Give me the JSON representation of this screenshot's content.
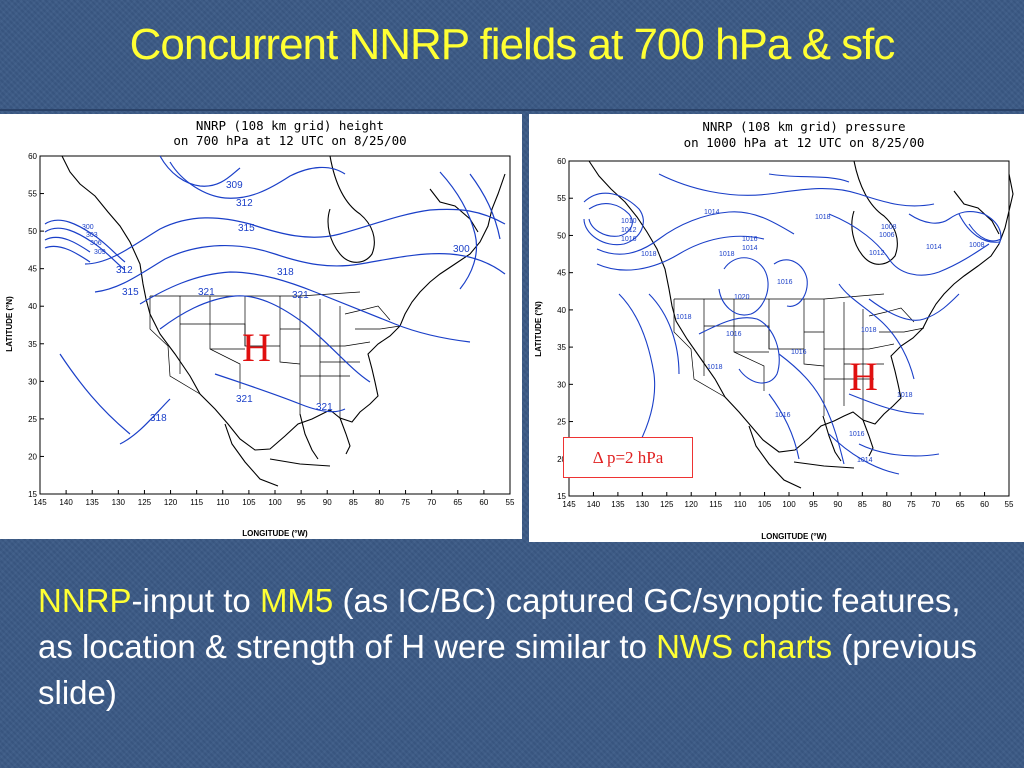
{
  "slide": {
    "title": "Concurrent NNRP fields at 700 hPa & sfc",
    "body": {
      "p1": "NNRP",
      "p2": "-input to ",
      "p3": "MM5",
      "p4": " (as IC/BC) captured GC/synoptic features, as location & strength of H were similar to ",
      "p5": "NWS charts",
      "p6": " (previous slide)"
    }
  },
  "colors": {
    "title": "#ffff33",
    "contour": "#1a3fc8",
    "high_marker": "#e01010",
    "background": "#3b5a86"
  },
  "left_map": {
    "title_line1": "NNRP (108 km grid) height",
    "title_line2": "on 700 hPa at 12 UTC on 8/25/00",
    "xlabel": "LONGITUDE (°W)",
    "ylabel": "LATITUDE (°N)",
    "xticks": [
      "145",
      "140",
      "135",
      "130",
      "125",
      "120",
      "115",
      "110",
      "105",
      "100",
      "95",
      "90",
      "85",
      "80",
      "75",
      "70",
      "65",
      "60",
      "55"
    ],
    "yticks": [
      "60",
      "55",
      "50",
      "45",
      "40",
      "35",
      "30",
      "25",
      "20",
      "15"
    ],
    "contour_labels": [
      "309",
      "312",
      "315",
      "300",
      "303",
      "306",
      "309",
      "312",
      "315",
      "318",
      "321",
      "321",
      "300",
      "321",
      "321",
      "318"
    ],
    "high_marker": "H"
  },
  "right_map": {
    "title_line1": "NNRP (108 km grid) pressure",
    "title_line2": "on 1000 hPa at 12 UTC on 8/25/00",
    "xlabel": "LONGITUDE (°W)",
    "ylabel": "LATITUDE (°N)",
    "xticks": [
      "145",
      "140",
      "135",
      "130",
      "125",
      "120",
      "115",
      "110",
      "105",
      "100",
      "95",
      "90",
      "85",
      "80",
      "75",
      "70",
      "65",
      "60",
      "55"
    ],
    "yticks": [
      "60",
      "55",
      "50",
      "45",
      "40",
      "35",
      "30",
      "25",
      "20",
      "15"
    ],
    "contour_labels": [
      "1010",
      "1012",
      "1016",
      "1018",
      "1014",
      "1016",
      "1018",
      "1008",
      "1006",
      "1012",
      "1014",
      "1008",
      "1018",
      "1014",
      "1020",
      "1016",
      "1016",
      "1018",
      "1018",
      "1016",
      "1016",
      "1014",
      "1018",
      "1018",
      "1016"
    ],
    "high_marker": "H",
    "legend": "Δ p=2 hPa"
  }
}
